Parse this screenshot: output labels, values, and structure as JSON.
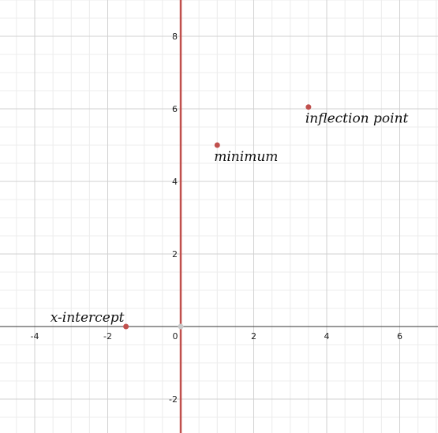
{
  "chart_data": {
    "type": "scatter",
    "xlim": [
      -5,
      7
    ],
    "ylim": [
      -3,
      9
    ],
    "grid": true,
    "minor_grid": true,
    "x_ticks": [
      -4,
      -2,
      0,
      2,
      4,
      6
    ],
    "y_ticks": [
      -2,
      2,
      4,
      6,
      8
    ],
    "x_tick_labels": [
      "-4",
      "-2",
      "0",
      "2",
      "4",
      "6"
    ],
    "y_tick_labels": [
      "-2",
      "2",
      "4",
      "6",
      "8"
    ],
    "vertical_line": {
      "x": 0,
      "color": "#c0504d"
    },
    "points": [
      {
        "name": "x-intercept",
        "label": "x-intercept",
        "x": -1.5,
        "y": 0,
        "label_position": "upper-left"
      },
      {
        "name": "minimum",
        "label": "minimum",
        "x": 1,
        "y": 5,
        "label_position": "below"
      },
      {
        "name": "inflection-point",
        "label": "inflection point",
        "x": 3.5,
        "y": 6.05,
        "label_position": "below"
      },
      {
        "name": "origin-point",
        "label": "",
        "x": 0,
        "y": 0,
        "label_position": "none"
      }
    ],
    "colors": {
      "point": "#c0504d",
      "origin_point": "#c9c9c9",
      "axis": "#333333",
      "major_grid": "#d0d0d0",
      "minor_grid": "#ececec"
    }
  }
}
